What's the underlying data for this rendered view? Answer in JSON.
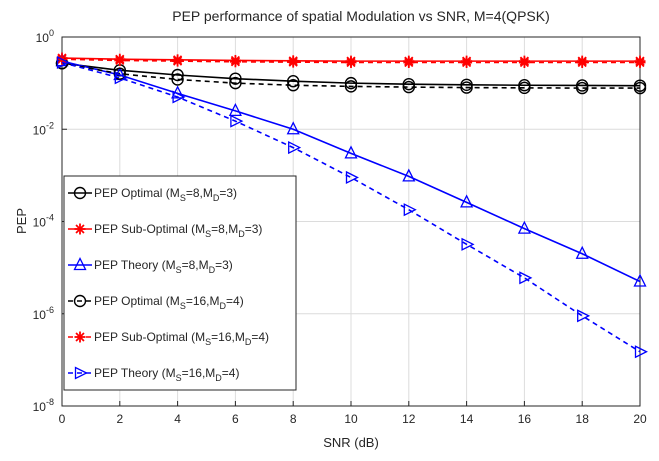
{
  "chart_data": {
    "type": "line",
    "title": "PEP performance of spatial Modulation vs SNR, M=4(QPSK)",
    "xlabel": "SNR (dB)",
    "ylabel": "PEP",
    "xlim": [
      0,
      20
    ],
    "ylim": [
      1e-08,
      1
    ],
    "yscale": "log",
    "grid": true,
    "legend_position": "left",
    "x_ticks": [
      "0",
      "2",
      "4",
      "6",
      "8",
      "10",
      "12",
      "14",
      "16",
      "18",
      "20"
    ],
    "y_tick_exponents": [
      "0",
      "-2",
      "-4",
      "-6",
      "-8"
    ],
    "y_tick_base": "10",
    "x": [
      0,
      2,
      4,
      6,
      8,
      10,
      12,
      14,
      16,
      18,
      20
    ],
    "series": [
      {
        "legend_main": "PEP Optimal (M",
        "legend_parts": [
          "PEP Optimal (M",
          "S",
          "=8,M",
          "D",
          "=3)"
        ],
        "color": "#000000",
        "dash": "solid",
        "marker": "circle",
        "values": [
          0.27,
          0.19,
          0.15,
          0.125,
          0.11,
          0.1,
          0.095,
          0.092,
          0.09,
          0.089,
          0.088
        ]
      },
      {
        "legend_parts": [
          "PEP Sub-Optimal (M",
          "S",
          "=8,M",
          "D",
          "=3)"
        ],
        "color": "#ff0000",
        "dash": "solid",
        "marker": "star",
        "values": [
          0.35,
          0.33,
          0.32,
          0.31,
          0.305,
          0.3,
          0.3,
          0.3,
          0.3,
          0.3,
          0.3
        ]
      },
      {
        "legend_parts": [
          "PEP Theory (M",
          "S",
          "=8,M",
          "D",
          "=3)"
        ],
        "color": "#0000ff",
        "dash": "solid",
        "marker": "triangle-up",
        "values": [
          0.3,
          0.15,
          0.06,
          0.025,
          0.01,
          0.003,
          0.00095,
          0.00026,
          7e-05,
          2e-05,
          5e-06
        ]
      },
      {
        "legend_parts": [
          "PEP Optimal (M",
          "S",
          "=16,M",
          "D",
          "=4)"
        ],
        "color": "#000000",
        "dash": "dashed",
        "marker": "circle",
        "values": [
          0.27,
          0.16,
          0.12,
          0.1,
          0.09,
          0.085,
          0.082,
          0.08,
          0.079,
          0.078,
          0.078
        ]
      },
      {
        "legend_parts": [
          "PEP Sub-Optimal (M",
          "S",
          "=16,M",
          "D",
          "=4)"
        ],
        "color": "#ff0000",
        "dash": "dashed",
        "marker": "star",
        "values": [
          0.33,
          0.31,
          0.3,
          0.29,
          0.285,
          0.28,
          0.28,
          0.28,
          0.28,
          0.28,
          0.28
        ]
      },
      {
        "legend_parts": [
          "PEP Theory (M",
          "S",
          "=16,M",
          "D",
          "=4)"
        ],
        "color": "#0000ff",
        "dash": "dashed",
        "marker": "triangle-right",
        "values": [
          0.28,
          0.13,
          0.05,
          0.015,
          0.004,
          0.0009,
          0.00018,
          3.2e-05,
          6e-06,
          9e-07,
          1.5e-07
        ]
      }
    ]
  }
}
